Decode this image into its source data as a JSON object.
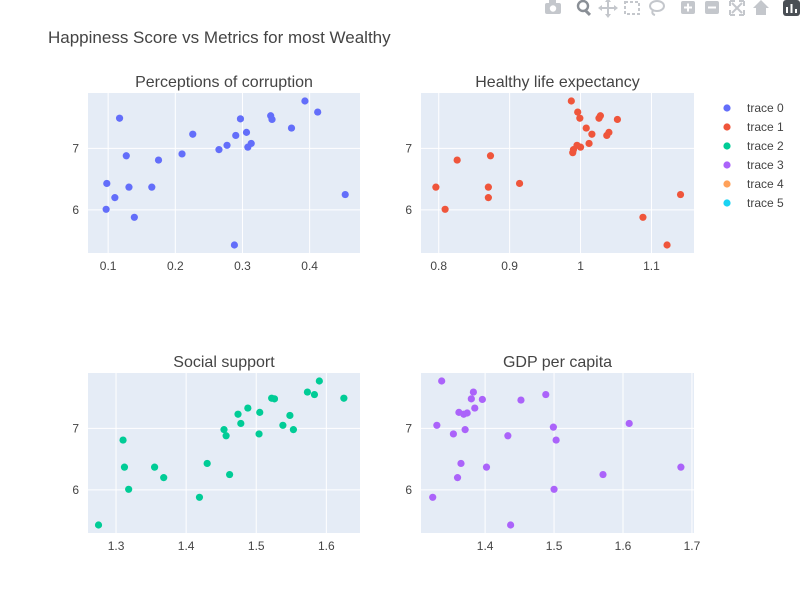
{
  "figure": {
    "title": "Happiness Score vs Metrics for most Wealthy"
  },
  "modebar": {
    "buttons": [
      {
        "icon": "camera-icon",
        "label": "Download plot as a png"
      },
      {
        "icon": "zoom-icon",
        "label": "Zoom"
      },
      {
        "icon": "pan-icon",
        "label": "Pan"
      },
      {
        "icon": "box-select-icon",
        "label": "Box Select"
      },
      {
        "icon": "lasso-select-icon",
        "label": "Lasso Select"
      },
      {
        "icon": "zoom-in-icon",
        "label": "Zoom in"
      },
      {
        "icon": "zoom-out-icon",
        "label": "Zoom out"
      },
      {
        "icon": "autoscale-icon",
        "label": "Autoscale"
      },
      {
        "icon": "reset-axes-icon",
        "label": "Reset axes"
      },
      {
        "icon": "plotly-logo-icon",
        "label": "Produced with Plotly"
      }
    ]
  },
  "legend": {
    "placement": "right",
    "items": [
      {
        "name": "trace 0",
        "color": "#636efa"
      },
      {
        "name": "trace 1",
        "color": "#ef553b"
      },
      {
        "name": "trace 2",
        "color": "#00cc96"
      },
      {
        "name": "trace 3",
        "color": "#ab63fa"
      },
      {
        "name": "trace 4",
        "color": "#ffa15a"
      },
      {
        "name": "trace 5",
        "color": "#19d3f3"
      }
    ]
  },
  "chart_data": [
    {
      "type": "scatter",
      "title": "Perceptions of corruption",
      "series": [
        {
          "name": "trace 0",
          "color": "#636efa"
        }
      ],
      "xlim": [
        0.07,
        0.475
      ],
      "ylim": [
        5.3,
        7.9
      ],
      "xticks": [
        0.1,
        0.2,
        0.3,
        0.4
      ],
      "xtick_labels": [
        "0.1",
        "0.2",
        "0.3",
        "0.4"
      ],
      "yticks": [
        6,
        7
      ],
      "ytick_labels": [
        "6",
        "7"
      ],
      "grid": true,
      "points": [
        [
          0.098,
          6.43
        ],
        [
          0.097,
          6.01
        ],
        [
          0.11,
          6.2
        ],
        [
          0.117,
          7.49
        ],
        [
          0.127,
          6.88
        ],
        [
          0.131,
          6.37
        ],
        [
          0.139,
          5.88
        ],
        [
          0.165,
          6.37
        ],
        [
          0.175,
          6.81
        ],
        [
          0.21,
          6.91
        ],
        [
          0.226,
          7.23
        ],
        [
          0.265,
          6.98
        ],
        [
          0.277,
          7.05
        ],
        [
          0.288,
          5.43
        ],
        [
          0.29,
          7.21
        ],
        [
          0.297,
          7.48
        ],
        [
          0.306,
          7.26
        ],
        [
          0.308,
          7.02
        ],
        [
          0.313,
          7.08
        ],
        [
          0.342,
          7.53
        ],
        [
          0.344,
          7.47
        ],
        [
          0.373,
          7.33
        ],
        [
          0.393,
          7.77
        ],
        [
          0.412,
          7.59
        ],
        [
          0.453,
          6.25
        ]
      ]
    },
    {
      "type": "scatter",
      "title": "Healthy life expectancy",
      "series": [
        {
          "name": "trace 1",
          "color": "#ef553b"
        }
      ],
      "xlim": [
        0.775,
        1.16
      ],
      "ylim": [
        5.3,
        7.9
      ],
      "xticks": [
        0.8,
        0.9,
        1.0,
        1.1
      ],
      "xtick_labels": [
        "0.8",
        "0.9",
        "1",
        "1.1"
      ],
      "yticks": [
        6,
        7
      ],
      "ytick_labels": [
        "6",
        "7"
      ],
      "grid": true,
      "points": [
        [
          0.796,
          6.37
        ],
        [
          0.809,
          6.01
        ],
        [
          0.826,
          6.81
        ],
        [
          0.87,
          6.37
        ],
        [
          0.87,
          6.2
        ],
        [
          0.873,
          6.88
        ],
        [
          0.914,
          6.43
        ],
        [
          0.987,
          7.77
        ],
        [
          0.989,
          6.93
        ],
        [
          0.99,
          6.98
        ],
        [
          0.995,
          7.05
        ],
        [
          0.996,
          7.59
        ],
        [
          0.999,
          7.49
        ],
        [
          1.0,
          7.02
        ],
        [
          1.008,
          7.33
        ],
        [
          1.012,
          7.08
        ],
        [
          1.016,
          7.23
        ],
        [
          1.026,
          7.49
        ],
        [
          1.028,
          7.53
        ],
        [
          1.037,
          7.21
        ],
        [
          1.04,
          7.26
        ],
        [
          1.052,
          7.47
        ],
        [
          1.088,
          5.88
        ],
        [
          1.122,
          5.43
        ],
        [
          1.141,
          6.25
        ]
      ]
    },
    {
      "type": "scatter",
      "title": "Social support",
      "series": [
        {
          "name": "trace 2",
          "color": "#00cc96"
        }
      ],
      "xlim": [
        1.26,
        1.648
      ],
      "ylim": [
        5.3,
        7.9
      ],
      "xticks": [
        1.3,
        1.4,
        1.5,
        1.6
      ],
      "xtick_labels": [
        "1.3",
        "1.4",
        "1.5",
        "1.6"
      ],
      "yticks": [
        6,
        7
      ],
      "ytick_labels": [
        "6",
        "7"
      ],
      "grid": true,
      "points": [
        [
          1.275,
          5.43
        ],
        [
          1.31,
          6.81
        ],
        [
          1.312,
          6.37
        ],
        [
          1.318,
          6.01
        ],
        [
          1.355,
          6.37
        ],
        [
          1.368,
          6.2
        ],
        [
          1.419,
          5.88
        ],
        [
          1.43,
          6.43
        ],
        [
          1.454,
          6.98
        ],
        [
          1.457,
          6.88
        ],
        [
          1.462,
          6.25
        ],
        [
          1.474,
          7.23
        ],
        [
          1.478,
          7.08
        ],
        [
          1.488,
          7.33
        ],
        [
          1.504,
          6.91
        ],
        [
          1.505,
          7.26
        ],
        [
          1.522,
          7.49
        ],
        [
          1.526,
          7.48
        ],
        [
          1.538,
          7.05
        ],
        [
          1.548,
          7.21
        ],
        [
          1.553,
          6.98
        ],
        [
          1.573,
          7.59
        ],
        [
          1.583,
          7.55
        ],
        [
          1.59,
          7.77
        ],
        [
          1.625,
          7.49
        ]
      ]
    },
    {
      "type": "scatter",
      "title": "GDP per capita",
      "series": [
        {
          "name": "trace 3",
          "color": "#ab63fa"
        }
      ],
      "xlim": [
        1.307,
        1.703
      ],
      "ylim": [
        5.3,
        7.9
      ],
      "xticks": [
        1.4,
        1.5,
        1.6,
        1.7
      ],
      "xtick_labels": [
        "1.4",
        "1.5",
        "1.6",
        "1.7"
      ],
      "yticks": [
        6,
        7
      ],
      "ytick_labels": [
        "6",
        "7"
      ],
      "grid": true,
      "points": [
        [
          1.324,
          5.88
        ],
        [
          1.33,
          7.05
        ],
        [
          1.337,
          7.77
        ],
        [
          1.354,
          6.91
        ],
        [
          1.36,
          6.2
        ],
        [
          1.362,
          7.26
        ],
        [
          1.365,
          6.43
        ],
        [
          1.369,
          7.23
        ],
        [
          1.371,
          6.98
        ],
        [
          1.374,
          7.25
        ],
        [
          1.38,
          7.48
        ],
        [
          1.383,
          7.59
        ],
        [
          1.385,
          7.33
        ],
        [
          1.396,
          7.47
        ],
        [
          1.402,
          6.37
        ],
        [
          1.433,
          6.88
        ],
        [
          1.437,
          5.43
        ],
        [
          1.452,
          7.46
        ],
        [
          1.488,
          7.55
        ],
        [
          1.499,
          7.02
        ],
        [
          1.5,
          6.01
        ],
        [
          1.503,
          6.81
        ],
        [
          1.571,
          6.25
        ],
        [
          1.609,
          7.08
        ],
        [
          1.684,
          6.37
        ]
      ]
    }
  ]
}
